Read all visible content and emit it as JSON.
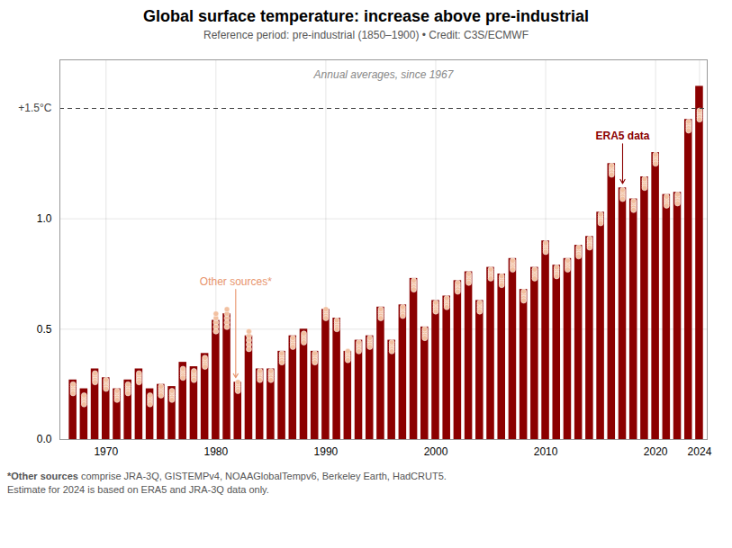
{
  "chart_data": {
    "type": "bar",
    "title": "Global surface temperature: increase above pre-industrial",
    "subtitle": "Reference period: pre-industrial (1850–1900) • Credit: C3S/ECMWF",
    "footnote": {
      "bold": "*Other sources",
      "text": " comprise JRA-3Q, GISTEMPv4, NOAAGlobalTempv6, Berkeley Earth, HadCRUT5.\nEstimate for 2024 is based on ERA5 and JRA-3Q data only."
    },
    "categories": [
      null,
      null,
      null,
      "1970",
      null,
      null,
      null,
      null,
      null,
      null,
      null,
      null,
      null,
      "1980",
      null,
      null,
      null,
      null,
      null,
      null,
      null,
      null,
      null,
      "1990",
      null,
      null,
      null,
      null,
      null,
      null,
      null,
      null,
      null,
      "2000",
      null,
      null,
      null,
      null,
      null,
      null,
      null,
      null,
      null,
      "2010",
      null,
      null,
      null,
      null,
      null,
      null,
      null,
      null,
      null,
      "2020",
      null,
      null,
      null,
      "2024"
    ],
    "series": [
      {
        "name": "ERA5 data",
        "type": "bar",
        "color": "#8B0000",
        "values": [
          0.27,
          0.23,
          0.32,
          0.28,
          0.23,
          0.27,
          0.32,
          0.23,
          0.25,
          0.24,
          0.35,
          0.33,
          0.39,
          0.54,
          0.57,
          0.26,
          0.47,
          0.32,
          0.32,
          0.4,
          0.47,
          0.5,
          0.4,
          0.59,
          0.55,
          0.4,
          0.45,
          0.47,
          0.6,
          0.45,
          0.61,
          0.73,
          0.51,
          0.63,
          0.65,
          0.72,
          0.76,
          0.63,
          0.78,
          0.75,
          0.82,
          0.68,
          0.78,
          0.9,
          0.79,
          0.82,
          0.88,
          0.92,
          1.03,
          1.25,
          1.14,
          1.09,
          1.19,
          1.3,
          1.11,
          1.12,
          1.45,
          1.6
        ]
      },
      {
        "name": "Other sources*",
        "type": "scatter",
        "marker": "circle",
        "color": "#F2C0A0",
        "edge_color": "#ffffff",
        "values": [
          [
            0.23,
            0.24,
            0.25,
            0.22,
            0.21
          ],
          [
            0.18,
            0.19,
            0.2,
            0.17,
            0.16
          ],
          [
            0.28,
            0.29,
            0.3,
            0.27,
            0.26
          ],
          [
            0.25,
            0.26,
            0.27,
            0.24,
            0.23
          ],
          [
            0.2,
            0.21,
            0.22,
            0.19,
            0.18
          ],
          [
            0.23,
            0.24,
            0.25,
            0.22,
            0.21
          ],
          [
            0.28,
            0.29,
            0.3,
            0.27,
            0.26
          ],
          [
            0.18,
            0.19,
            0.2,
            0.17,
            0.16
          ],
          [
            0.22,
            0.23,
            0.24,
            0.21,
            0.2
          ],
          [
            0.2,
            0.21,
            0.22,
            0.19,
            0.18
          ],
          [
            0.3,
            0.31,
            0.32,
            0.29,
            0.28
          ],
          [
            0.29,
            0.3,
            0.31,
            0.28,
            0.27
          ],
          [
            0.35,
            0.36,
            0.37,
            0.34,
            0.33
          ],
          [
            0.53,
            0.55,
            0.57,
            0.51,
            0.49
          ],
          [
            0.55,
            0.57,
            0.59,
            0.53,
            0.51
          ],
          [
            0.24,
            0.25,
            0.26,
            0.23,
            0.22
          ],
          [
            0.45,
            0.47,
            0.49,
            0.43,
            0.41
          ],
          [
            0.29,
            0.3,
            0.31,
            0.28,
            0.27
          ],
          [
            0.29,
            0.3,
            0.31,
            0.28,
            0.27
          ],
          [
            0.37,
            0.38,
            0.39,
            0.36,
            0.35
          ],
          [
            0.44,
            0.45,
            0.46,
            0.43,
            0.42
          ],
          [
            0.46,
            0.47,
            0.48,
            0.45,
            0.44
          ],
          [
            0.37,
            0.38,
            0.39,
            0.36,
            0.35
          ],
          [
            0.57,
            0.58,
            0.59,
            0.56,
            0.55
          ],
          [
            0.52,
            0.53,
            0.54,
            0.51,
            0.5
          ],
          [
            0.38,
            0.39,
            0.4,
            0.37,
            0.36
          ],
          [
            0.42,
            0.43,
            0.44,
            0.41,
            0.4
          ],
          [
            0.44,
            0.45,
            0.46,
            0.43,
            0.42
          ],
          [
            0.57,
            0.58,
            0.59,
            0.56,
            0.55
          ],
          [
            0.42,
            0.43,
            0.44,
            0.41,
            0.4
          ],
          [
            0.58,
            0.59,
            0.6,
            0.57,
            0.56
          ],
          [
            0.7,
            0.71,
            0.72,
            0.69,
            0.68
          ],
          [
            0.48,
            0.49,
            0.5,
            0.47,
            0.46
          ],
          [
            0.6,
            0.61,
            0.62,
            0.59,
            0.58
          ],
          [
            0.62,
            0.63,
            0.64,
            0.61,
            0.6
          ],
          [
            0.69,
            0.7,
            0.71,
            0.68,
            0.67
          ],
          [
            0.73,
            0.74,
            0.75,
            0.72,
            0.71
          ],
          [
            0.6,
            0.61,
            0.62,
            0.59,
            0.58
          ],
          [
            0.75,
            0.76,
            0.77,
            0.74,
            0.73
          ],
          [
            0.72,
            0.73,
            0.74,
            0.71,
            0.7
          ],
          [
            0.79,
            0.8,
            0.81,
            0.78,
            0.77
          ],
          [
            0.65,
            0.66,
            0.67,
            0.64,
            0.63
          ],
          [
            0.75,
            0.76,
            0.77,
            0.74,
            0.73
          ],
          [
            0.87,
            0.88,
            0.89,
            0.86,
            0.85
          ],
          [
            0.76,
            0.77,
            0.78,
            0.75,
            0.74
          ],
          [
            0.79,
            0.8,
            0.81,
            0.78,
            0.77
          ],
          [
            0.85,
            0.86,
            0.87,
            0.84,
            0.83
          ],
          [
            0.89,
            0.9,
            0.91,
            0.88,
            0.87
          ],
          [
            1.0,
            1.01,
            1.02,
            0.99,
            0.98
          ],
          [
            1.22,
            1.23,
            1.24,
            1.21,
            1.2
          ],
          [
            1.11,
            1.12,
            1.13,
            1.1,
            1.09
          ],
          [
            1.06,
            1.07,
            1.08,
            1.05,
            1.04
          ],
          [
            1.16,
            1.17,
            1.18,
            1.15,
            1.14
          ],
          [
            1.27,
            1.28,
            1.29,
            1.26,
            1.25
          ],
          [
            1.08,
            1.09,
            1.1,
            1.07,
            1.06
          ],
          [
            1.09,
            1.1,
            1.11,
            1.08,
            1.07
          ],
          [
            1.42,
            1.43,
            1.44,
            1.41,
            1.4
          ],
          [
            1.47,
            1.48,
            1.49,
            1.46,
            1.45
          ]
        ]
      }
    ],
    "reference_line": {
      "value": 1.5,
      "label": "+1.5°C",
      "line_style": "dashed",
      "color": "#444444"
    },
    "annotations": [
      {
        "text": "Annual averages, since 1967",
        "color": "#888888"
      },
      {
        "text": "ERA5 data",
        "color": "#8B0000",
        "series": "ERA5 data"
      },
      {
        "text": "Other sources*",
        "color": "#E8956D",
        "series": "Other sources*"
      }
    ],
    "ylim": [
      0.0,
      1.72
    ],
    "yticks": [
      {
        "value": 0.0,
        "label": "0.0"
      },
      {
        "value": 0.5,
        "label": "0.5"
      },
      {
        "value": 1.0,
        "label": "1.0"
      }
    ],
    "grid": true
  }
}
